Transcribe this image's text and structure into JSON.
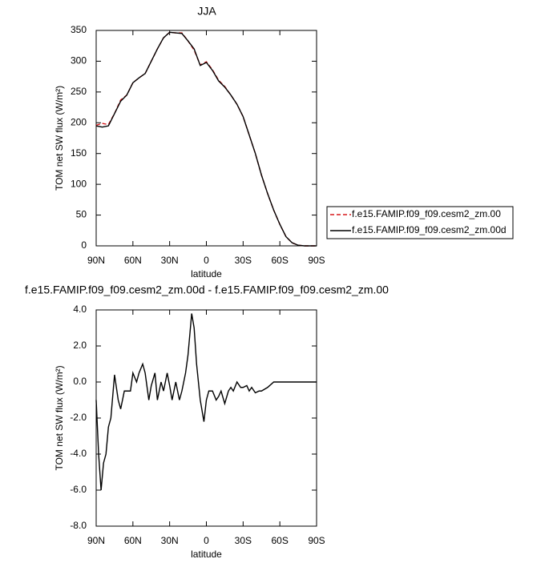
{
  "chart_data": [
    {
      "type": "line",
      "title": "JJA",
      "x_label": "latitude",
      "y_label": "TOM net SW flux (W/m²)",
      "x": [
        90,
        85,
        80,
        75,
        70,
        65,
        60,
        55,
        50,
        45,
        40,
        35,
        30,
        25,
        20,
        15,
        10,
        5,
        0,
        -5,
        -10,
        -15,
        -20,
        -25,
        -30,
        -35,
        -40,
        -45,
        -50,
        -55,
        -60,
        -65,
        -70,
        -75,
        -80,
        -85,
        -90
      ],
      "xlim": [
        90,
        -90
      ],
      "xticks": [
        {
          "value": 90,
          "label": "90N"
        },
        {
          "value": 60,
          "label": "60N"
        },
        {
          "value": 30,
          "label": "30N"
        },
        0,
        {
          "value": -30,
          "label": "30S"
        },
        {
          "value": -60,
          "label": "60S"
        },
        {
          "value": -90,
          "label": "90S"
        }
      ],
      "ylim": [
        0,
        350
      ],
      "yticks": [
        0,
        50,
        100,
        150,
        200,
        250,
        300,
        350
      ],
      "legend": "right",
      "series": [
        {
          "name": "f.e15.FAMIP.f09_f09.cesm2_zm.00",
          "color": "#d7191c",
          "dashed": true,
          "values": [
            196,
            199,
            197,
            215,
            237,
            245,
            265,
            273,
            280,
            300,
            320,
            338,
            347,
            346,
            346,
            333,
            318,
            294,
            299,
            286,
            269,
            259,
            245,
            230,
            210,
            180,
            150,
            115,
            85,
            58,
            35,
            15,
            5,
            1,
            0,
            0,
            0
          ]
        },
        {
          "name": "f.e15.FAMIP.f09_f09.cesm2_zm.00d",
          "color": "#000000",
          "dashed": false,
          "values": [
            195,
            193,
            195,
            215,
            235,
            245,
            265,
            273,
            280,
            300,
            320,
            338,
            347,
            346,
            345,
            333,
            320,
            293,
            298,
            285,
            268,
            258,
            245,
            230,
            210,
            180,
            150,
            115,
            85,
            58,
            35,
            15,
            5,
            1,
            0,
            0,
            0
          ]
        }
      ]
    },
    {
      "type": "line",
      "title": "f.e15.FAMIP.f09_f09.cesm2_zm.00d - f.e15.FAMIP.f09_f09.cesm2_zm.00",
      "x_label": "latitude",
      "y_label": "TOM net SW flux (W/m²)",
      "x": [
        90,
        88,
        86,
        84,
        82,
        80,
        78,
        75,
        72,
        70,
        67,
        65,
        62,
        60,
        57,
        55,
        52,
        50,
        47,
        45,
        42,
        40,
        37,
        35,
        32,
        30,
        28,
        25,
        22,
        20,
        17,
        15,
        12,
        10,
        8,
        5,
        2,
        0,
        -2,
        -5,
        -8,
        -10,
        -12,
        -15,
        -18,
        -20,
        -22,
        -25,
        -28,
        -30,
        -33,
        -35,
        -37,
        -40,
        -43,
        -45,
        -50,
        -55,
        -60,
        -65,
        -70,
        -75,
        -80,
        -85,
        -90
      ],
      "xlim": [
        90,
        -90
      ],
      "xticks": [
        {
          "value": 90,
          "label": "90N"
        },
        {
          "value": 60,
          "label": "60N"
        },
        {
          "value": 30,
          "label": "30N"
        },
        0,
        {
          "value": -30,
          "label": "30S"
        },
        {
          "value": -60,
          "label": "60S"
        },
        {
          "value": -90,
          "label": "90S"
        }
      ],
      "ylim": [
        -8,
        4
      ],
      "yticks": [
        {
          "value": -8,
          "label": "-8.0"
        },
        {
          "value": -6,
          "label": "-6.0"
        },
        {
          "value": -4,
          "label": "-4.0"
        },
        {
          "value": -2,
          "label": "-2.0"
        },
        {
          "value": 0,
          "label": "0.0"
        },
        {
          "value": 2,
          "label": "2.0"
        },
        {
          "value": 4,
          "label": "4.0"
        }
      ],
      "series": [
        {
          "color": "#000000",
          "dashed": false,
          "values": [
            -1,
            -4,
            -6,
            -4.5,
            -4,
            -2.5,
            -2,
            0.4,
            -1,
            -1.5,
            -0.5,
            -0.5,
            -0.5,
            0.5,
            0,
            0.5,
            1,
            0.5,
            -1,
            -0.2,
            0.5,
            -1,
            0,
            -0.5,
            0.5,
            -0.2,
            -1,
            0,
            -1,
            -0.5,
            0.5,
            1.5,
            3.8,
            3,
            1,
            -1,
            -2.2,
            -1,
            -0.5,
            -0.5,
            -1,
            -0.8,
            -0.5,
            -1.2,
            -0.5,
            -0.3,
            -0.5,
            0,
            -0.3,
            -0.3,
            -0.2,
            -0.5,
            -0.3,
            -0.6,
            -0.5,
            -0.5,
            -0.3,
            0,
            0,
            0,
            0,
            0,
            0,
            0,
            0
          ]
        }
      ]
    }
  ]
}
